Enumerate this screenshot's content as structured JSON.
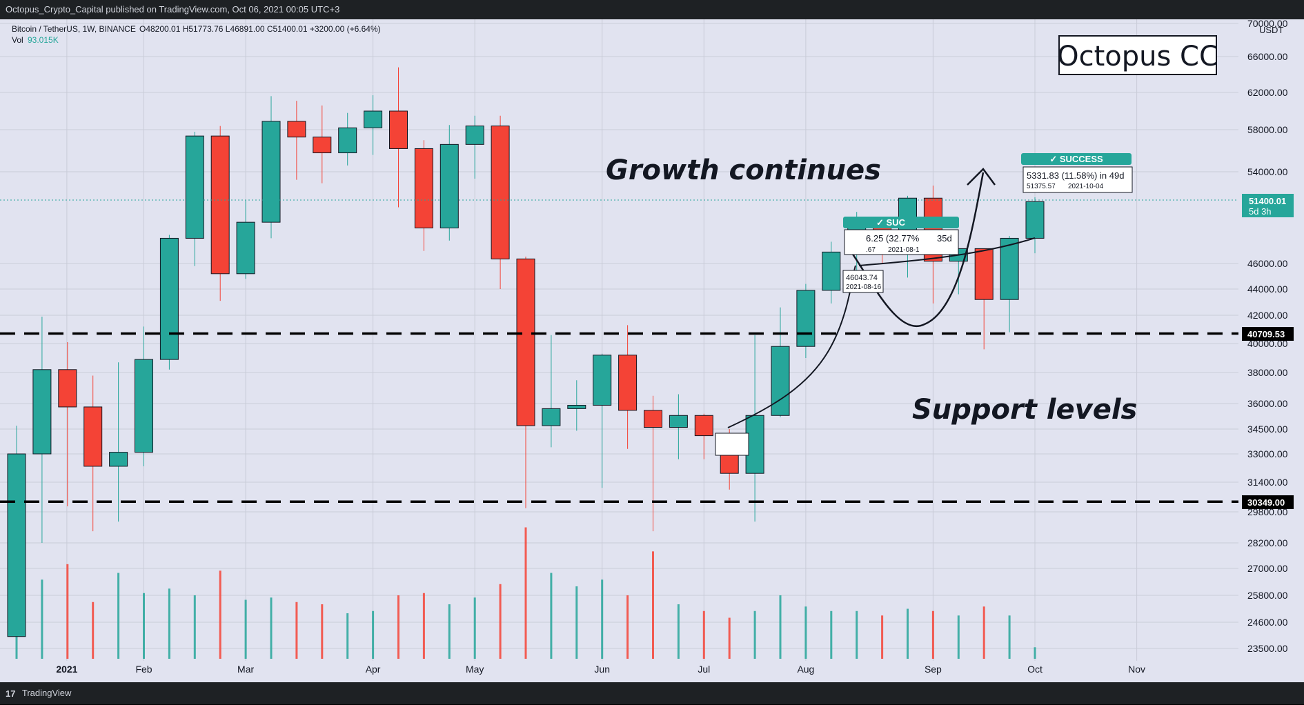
{
  "header": {
    "published": "Octopus_Crypto_Capital published on TradingView.com, Oct 06, 2021 00:05 UTC+3"
  },
  "footer": {
    "logo_text": "TradingView"
  },
  "legend": {
    "symbol": "Bitcoin / TetherUS, 1W, BINANCE",
    "ohlc": "O48200.01 H51773.76 L46891.00 C51400.01 +3200.00 (+6.64%)",
    "vol_label": "Vol",
    "vol_value": "93.015K"
  },
  "brand_box": {
    "text": "Octopus CC"
  },
  "annotations": {
    "growth": "Growth continues",
    "support": "Support levels"
  },
  "price_tags": {
    "current": "51400.01",
    "countdown": "5d 3h",
    "support_high": "40709.53",
    "support_low": "30349.00",
    "currency": "USDT"
  },
  "trade_labels": {
    "success1_badge": "✓ SUCCESS",
    "success1_text": "5331.83 (11.58%) in 49d",
    "success1_entry": "51375.57",
    "success1_date": "2021-10-04",
    "success2_badge": "✓ SUC",
    "success2_text": "6.25 (32.77%",
    "success2_days": "35d",
    "success2_entry": ".67",
    "success2_date": "2021-08-1",
    "pivot_value": "46043.74",
    "pivot_date": "2021-08-16"
  },
  "colors": {
    "background": "#e1e3f0",
    "bull": "#26a69a",
    "bear": "#f44336",
    "grid": "#c9ccd8",
    "text": "#131722"
  },
  "chart_data": {
    "type": "candlestick",
    "title": "Bitcoin / TetherUS, 1W, BINANCE",
    "yaxis_ticks": [
      "70000.00",
      "66000.00",
      "62000.00",
      "58000.00",
      "54000.00",
      "46000.00",
      "44000.00",
      "42000.00",
      "40000.00",
      "38000.00",
      "36000.00",
      "34500.00",
      "33000.00",
      "31400.00",
      "29800.00",
      "28200.00",
      "27000.00",
      "25800.00",
      "24600.00",
      "23500.00"
    ],
    "xaxis_ticks": [
      {
        "label": "2021",
        "bar": 1
      },
      {
        "label": "Feb",
        "bar": 5
      },
      {
        "label": "Mar",
        "bar": 9
      },
      {
        "label": "Apr",
        "bar": 14
      },
      {
        "label": "May",
        "bar": 18
      },
      {
        "label": "Jun",
        "bar": 23
      },
      {
        "label": "Jul",
        "bar": 27
      },
      {
        "label": "Aug",
        "bar": 31
      },
      {
        "label": "Sep",
        "bar": 36
      },
      {
        "label": "Oct",
        "bar": 40
      },
      {
        "label": "Nov",
        "bar": 44
      }
    ],
    "support_levels": [
      40709.53,
      30349.0
    ],
    "candles": [
      {
        "o": 24000,
        "h": 34700,
        "l": 24000,
        "c": 33000
      },
      {
        "o": 33000,
        "h": 41900,
        "l": 28200,
        "c": 38200
      },
      {
        "o": 38200,
        "h": 40100,
        "l": 30100,
        "c": 35800
      },
      {
        "o": 35800,
        "h": 37800,
        "l": 28800,
        "c": 32300
      },
      {
        "o": 32300,
        "h": 38700,
        "l": 29300,
        "c": 33100
      },
      {
        "o": 33100,
        "h": 41200,
        "l": 32300,
        "c": 38900
      },
      {
        "o": 38900,
        "h": 48500,
        "l": 38200,
        "c": 48200
      },
      {
        "o": 48200,
        "h": 57800,
        "l": 45800,
        "c": 57400
      },
      {
        "o": 57400,
        "h": 58400,
        "l": 43100,
        "c": 45200
      },
      {
        "o": 45200,
        "h": 51500,
        "l": 44800,
        "c": 49600
      },
      {
        "o": 49600,
        "h": 61600,
        "l": 48200,
        "c": 58900
      },
      {
        "o": 58900,
        "h": 61100,
        "l": 53300,
        "c": 57300
      },
      {
        "o": 57300,
        "h": 60600,
        "l": 53000,
        "c": 55800
      },
      {
        "o": 55800,
        "h": 59800,
        "l": 54600,
        "c": 58200
      },
      {
        "o": 58200,
        "h": 61700,
        "l": 55600,
        "c": 60000
      },
      {
        "o": 60000,
        "h": 64800,
        "l": 50900,
        "c": 56200
      },
      {
        "o": 56200,
        "h": 57000,
        "l": 47100,
        "c": 49100
      },
      {
        "o": 49100,
        "h": 58500,
        "l": 48000,
        "c": 56600
      },
      {
        "o": 56600,
        "h": 59500,
        "l": 53400,
        "c": 58400
      },
      {
        "o": 58400,
        "h": 59500,
        "l": 44000,
        "c": 46400
      },
      {
        "o": 46400,
        "h": 46600,
        "l": 30000,
        "c": 34700
      },
      {
        "o": 34700,
        "h": 40600,
        "l": 33400,
        "c": 35700
      },
      {
        "o": 35700,
        "h": 37500,
        "l": 34400,
        "c": 35900
      },
      {
        "o": 35900,
        "h": 39300,
        "l": 31100,
        "c": 39200
      },
      {
        "o": 39200,
        "h": 41300,
        "l": 33300,
        "c": 35600
      },
      {
        "o": 35600,
        "h": 36500,
        "l": 28800,
        "c": 34600
      },
      {
        "o": 34600,
        "h": 36600,
        "l": 32700,
        "c": 35300
      },
      {
        "o": 35300,
        "h": 35400,
        "l": 32700,
        "c": 34100
      },
      {
        "o": 34100,
        "h": 34500,
        "l": 31000,
        "c": 31900
      },
      {
        "o": 31900,
        "h": 40600,
        "l": 29300,
        "c": 35300
      },
      {
        "o": 35300,
        "h": 42600,
        "l": 35200,
        "c": 39800
      },
      {
        "o": 39800,
        "h": 44400,
        "l": 39000,
        "c": 43900
      },
      {
        "o": 43900,
        "h": 47900,
        "l": 42900,
        "c": 47000
      },
      {
        "o": 47000,
        "h": 50500,
        "l": 44700,
        "c": 49300
      },
      {
        "o": 49300,
        "h": 50000,
        "l": 46000,
        "c": 48900
      },
      {
        "o": 48900,
        "h": 51900,
        "l": 44900,
        "c": 51700
      },
      {
        "o": 51700,
        "h": 52800,
        "l": 42900,
        "c": 46200
      },
      {
        "o": 46200,
        "h": 47300,
        "l": 43600,
        "c": 47300
      },
      {
        "o": 47300,
        "h": 47300,
        "l": 39600,
        "c": 43200
      },
      {
        "o": 43200,
        "h": 48400,
        "l": 40800,
        "c": 48200
      },
      {
        "o": 48200,
        "h": 51773.76,
        "l": 46891,
        "c": 51400.01
      }
    ],
    "volume": [
      2400,
      2650,
      2720,
      2550,
      2680,
      2590,
      2610,
      2580,
      2690,
      2560,
      2570,
      2550,
      2540,
      2500,
      2510,
      2580,
      2590,
      2540,
      2570,
      2630,
      2900,
      2680,
      2620,
      2650,
      2580,
      2780,
      2540,
      2510,
      2480,
      2510,
      2580,
      2530,
      2510,
      2510,
      2490,
      2520,
      2510,
      2490,
      2530,
      2490,
      2355
    ]
  }
}
